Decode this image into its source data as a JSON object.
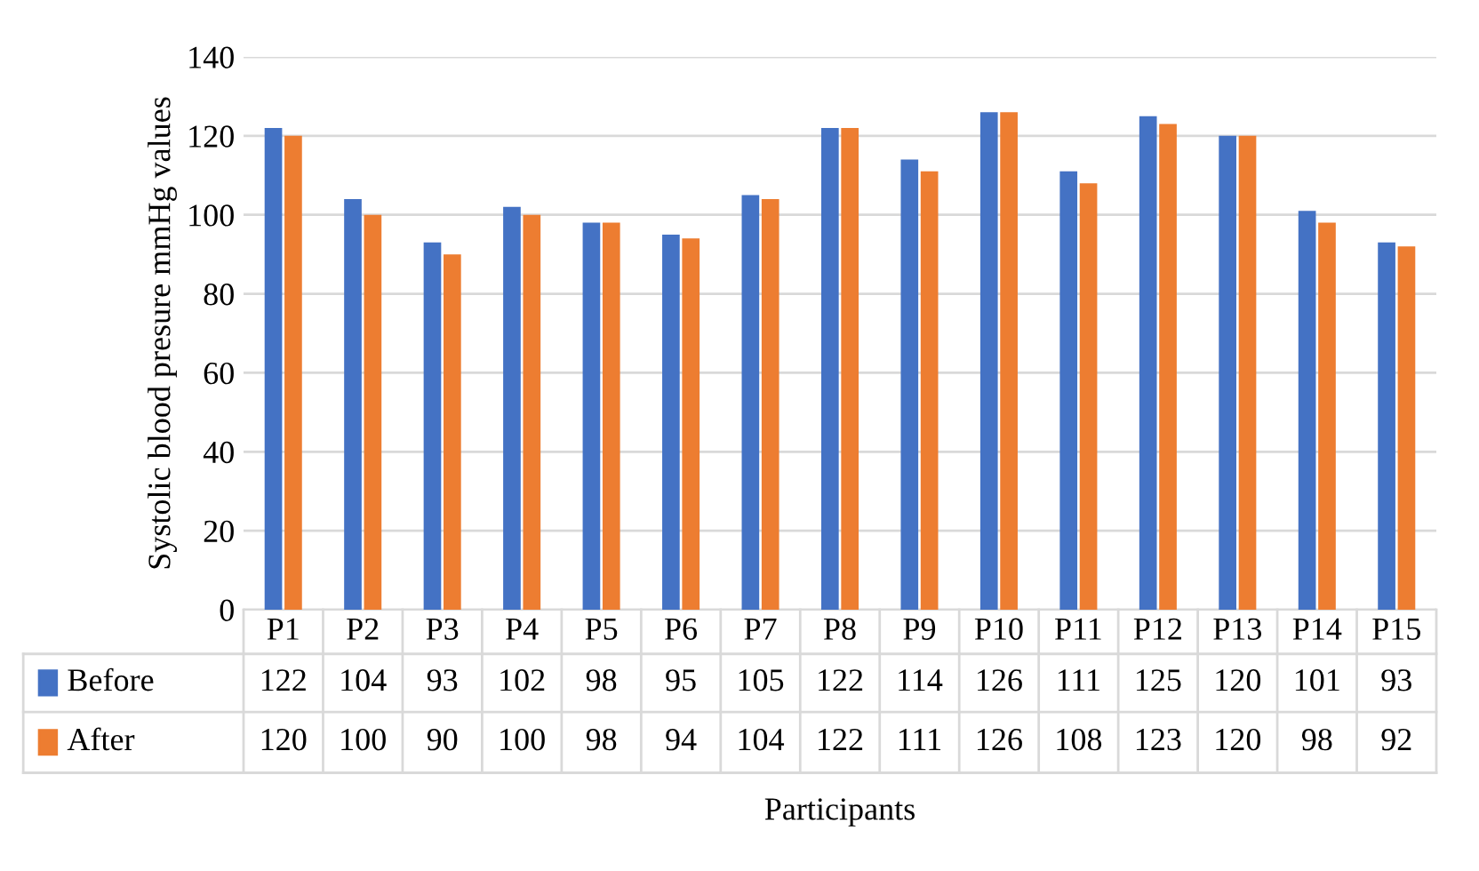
{
  "chart_data": {
    "type": "bar",
    "xlabel": "Participants",
    "ylabel": "Systolic blood presure mmHg values",
    "categories": [
      "P1",
      "P2",
      "P3",
      "P4",
      "P5",
      "P6",
      "P7",
      "P8",
      "P9",
      "P10",
      "P11",
      "P12",
      "P13",
      "P14",
      "P15"
    ],
    "series": [
      {
        "name": "Before",
        "color": "#4472c4",
        "values": [
          122,
          104,
          93,
          102,
          98,
          95,
          105,
          122,
          114,
          126,
          111,
          125,
          120,
          101,
          93
        ]
      },
      {
        "name": "After",
        "color": "#ed7d31",
        "values": [
          120,
          100,
          90,
          100,
          98,
          94,
          104,
          122,
          111,
          126,
          108,
          123,
          120,
          98,
          92
        ]
      }
    ],
    "ylim": [
      0,
      140
    ],
    "yticks": [
      0,
      20,
      40,
      60,
      80,
      100,
      120,
      140
    ],
    "grid": "y",
    "data_labels": true,
    "legend": "bottom"
  }
}
